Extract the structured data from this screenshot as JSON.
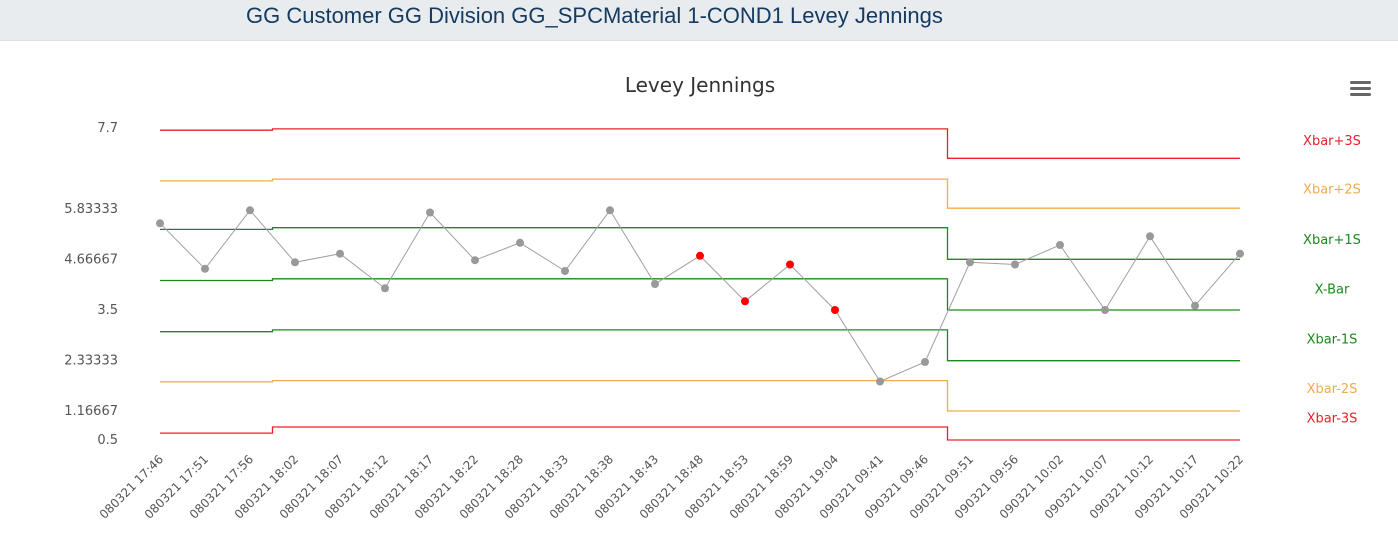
{
  "header": {
    "title": "GG Customer GG Division GG_SPCMaterial 1-COND1 Levey Jennings"
  },
  "menu": {
    "icon": "hamburger-menu-icon"
  },
  "chart_data": {
    "type": "line",
    "title": "Levey Jennings",
    "x": [
      "080321 17:46",
      "080321 17:51",
      "080321 17:56",
      "080321 18:02",
      "080321 18:07",
      "080321 18:12",
      "080321 18:17",
      "080321 18:22",
      "080321 18:28",
      "080321 18:33",
      "080321 18:38",
      "080321 18:43",
      "080321 18:48",
      "080321 18:53",
      "080321 18:59",
      "080321 19:04",
      "090321 09:41",
      "090321 09:46",
      "090321 09:51",
      "090321 09:56",
      "090321 10:02",
      "090321 10:07",
      "090321 10:12",
      "090321 10:17",
      "090321 10:22"
    ],
    "yticks": [
      "7.7",
      "5.83333",
      "4.66667",
      "3.5",
      "2.33333",
      "1.16667",
      "0.5"
    ],
    "ylim": [
      0.5,
      7.7
    ],
    "series": [
      {
        "values": [
          5.5,
          4.45,
          5.8,
          4.6,
          4.8,
          4.0,
          5.75,
          4.65,
          5.05,
          4.4,
          5.8,
          4.1,
          4.75,
          3.7,
          4.55,
          3.5,
          1.85,
          2.3,
          4.6,
          4.55,
          5.0,
          3.5,
          5.2,
          3.6,
          4.8
        ],
        "color": "#a0a0a0",
        "flagged_color": "#ff0000",
        "flagged_indices": [
          12,
          13,
          14,
          15
        ]
      }
    ],
    "control_limits": [
      {
        "name": "Xbar+3S",
        "color": "#e8202a",
        "segments": [
          [
            0,
            2.5,
            7.65
          ],
          [
            2.5,
            17.5,
            7.68
          ],
          [
            17.5,
            24,
            7.0
          ]
        ]
      },
      {
        "name": "Xbar+2S",
        "color": "#f2aa4c",
        "segments": [
          [
            0,
            2.5,
            6.48
          ],
          [
            2.5,
            17.5,
            6.52
          ],
          [
            17.5,
            24,
            5.85
          ]
        ]
      },
      {
        "name": "Xbar+1S",
        "color": "#1b8a1b",
        "segments": [
          [
            0,
            2.5,
            5.36
          ],
          [
            2.5,
            17.5,
            5.4
          ],
          [
            17.5,
            24,
            4.67
          ]
        ]
      },
      {
        "name": "X-Bar",
        "color": "#1b8a1b",
        "segments": [
          [
            0,
            2.5,
            4.18
          ],
          [
            2.5,
            17.5,
            4.22
          ],
          [
            17.5,
            24,
            3.5
          ]
        ]
      },
      {
        "name": "Xbar-1S",
        "color": "#1b8a1b",
        "segments": [
          [
            0,
            2.5,
            3.0
          ],
          [
            2.5,
            17.5,
            3.04
          ],
          [
            17.5,
            24,
            2.33
          ]
        ]
      },
      {
        "name": "Xbar-2S",
        "color": "#f2aa4c",
        "segments": [
          [
            0,
            2.5,
            1.84
          ],
          [
            2.5,
            17.5,
            1.87
          ],
          [
            17.5,
            24,
            1.17
          ]
        ]
      },
      {
        "name": "Xbar-3S",
        "color": "#e8202a",
        "segments": [
          [
            0,
            2.5,
            0.66
          ],
          [
            2.5,
            17.5,
            0.8
          ],
          [
            17.5,
            24,
            0.5
          ]
        ]
      }
    ],
    "limit_label_values": [
      7.4,
      6.28,
      5.12,
      3.97,
      2.82,
      1.68,
      1.0
    ]
  }
}
